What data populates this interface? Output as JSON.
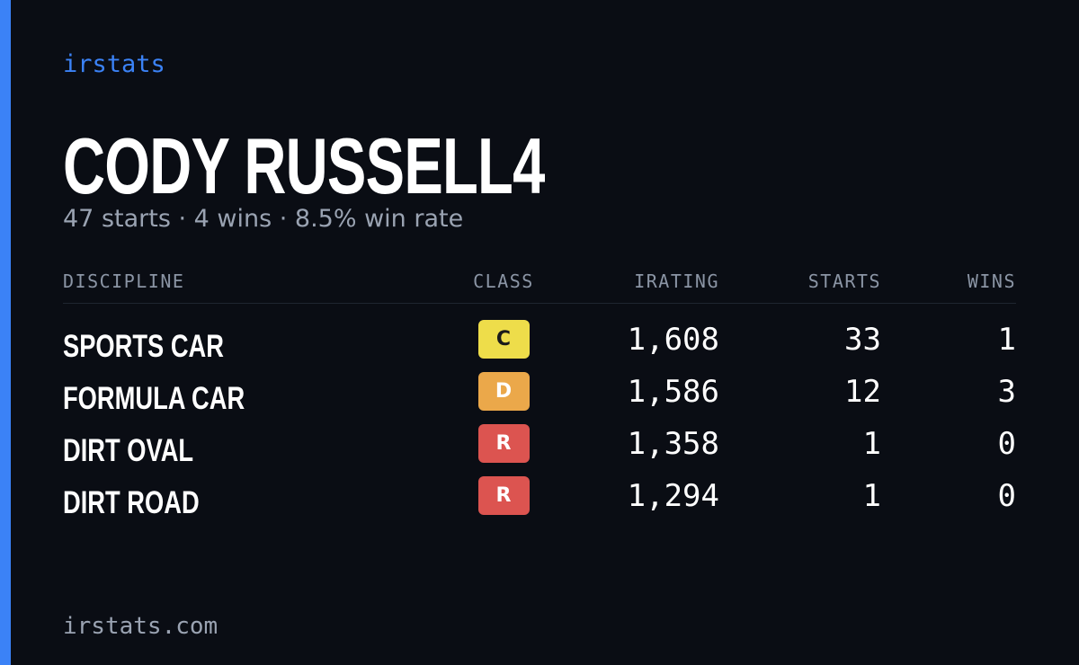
{
  "brand": "irstats",
  "driver": {
    "name": "CODY RUSSELL4",
    "summary": "47 starts · 4 wins · 8.5% win rate"
  },
  "table": {
    "headers": [
      "DISCIPLINE",
      "CLASS",
      "IRATING",
      "STARTS",
      "WINS"
    ],
    "rows": [
      [
        "SPORTS CAR",
        "C",
        "1,608",
        "33",
        "1"
      ],
      [
        "FORMULA CAR",
        "D",
        "1,586",
        "12",
        "3"
      ],
      [
        "DIRT OVAL",
        "R",
        "1,358",
        "1",
        "0"
      ],
      [
        "DIRT ROAD",
        "R",
        "1,294",
        "1",
        "0"
      ]
    ]
  },
  "footer": "irstats.com"
}
